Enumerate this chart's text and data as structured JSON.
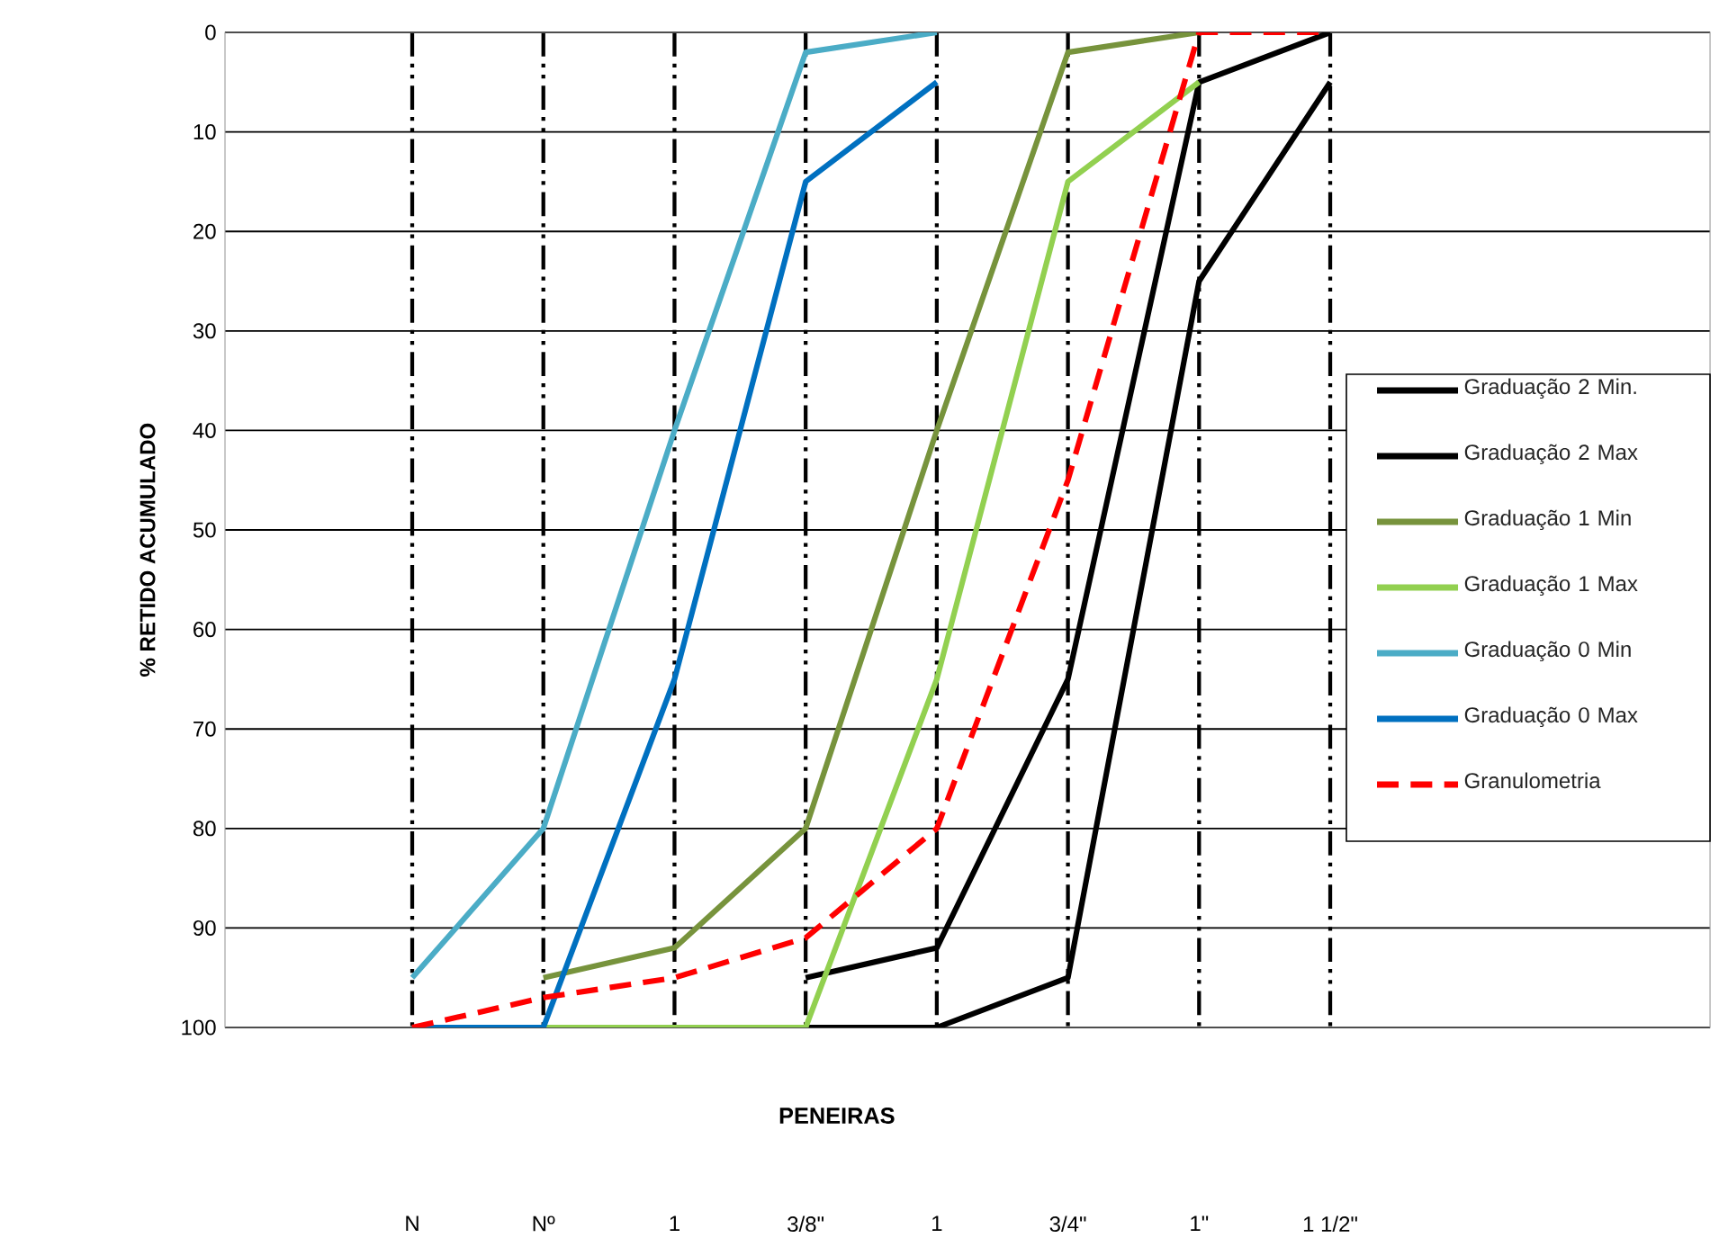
{
  "chart_data": {
    "type": "line",
    "xlabel": "PENEIRAS",
    "ylabel": "% RETIDO  ACUMULADO",
    "categories": [
      "N",
      "Nº",
      "1",
      "3/8\"",
      "1",
      "3/4\"",
      "1\"",
      "1 1/2\""
    ],
    "ylim": [
      100,
      0
    ],
    "yticks": [
      0,
      10,
      20,
      30,
      40,
      50,
      60,
      70,
      80,
      90,
      100
    ],
    "grid": true,
    "legend": "right",
    "series": [
      {
        "name": "Graduação 2 Min.",
        "color": "#000000",
        "values": [
          null,
          null,
          null,
          95,
          92,
          65,
          5,
          0
        ]
      },
      {
        "name": "Graduação 2 Max",
        "color": "#000000",
        "values": [
          null,
          null,
          null,
          100,
          100,
          95,
          25,
          5
        ]
      },
      {
        "name": "Graduação 1 Min",
        "color": "#77933c",
        "values": [
          null,
          95,
          92,
          80,
          40,
          2,
          0,
          null
        ]
      },
      {
        "name": "Graduação 1 Max",
        "color": "#92d050",
        "values": [
          null,
          100,
          100,
          100,
          65,
          15,
          5,
          null
        ]
      },
      {
        "name": "Graduação 0 Min",
        "color": "#4bacc6",
        "values": [
          95,
          80,
          40,
          2,
          0,
          null,
          null,
          null
        ]
      },
      {
        "name": "Graduação 0 Max",
        "color": "#0070c0",
        "values": [
          100,
          100,
          65,
          15,
          5,
          null,
          null,
          null
        ]
      },
      {
        "name": "Granulometria",
        "color": "#ff0000",
        "line_style": "dashed",
        "values": [
          100,
          97,
          95,
          91,
          80,
          45,
          0,
          0
        ]
      }
    ]
  }
}
